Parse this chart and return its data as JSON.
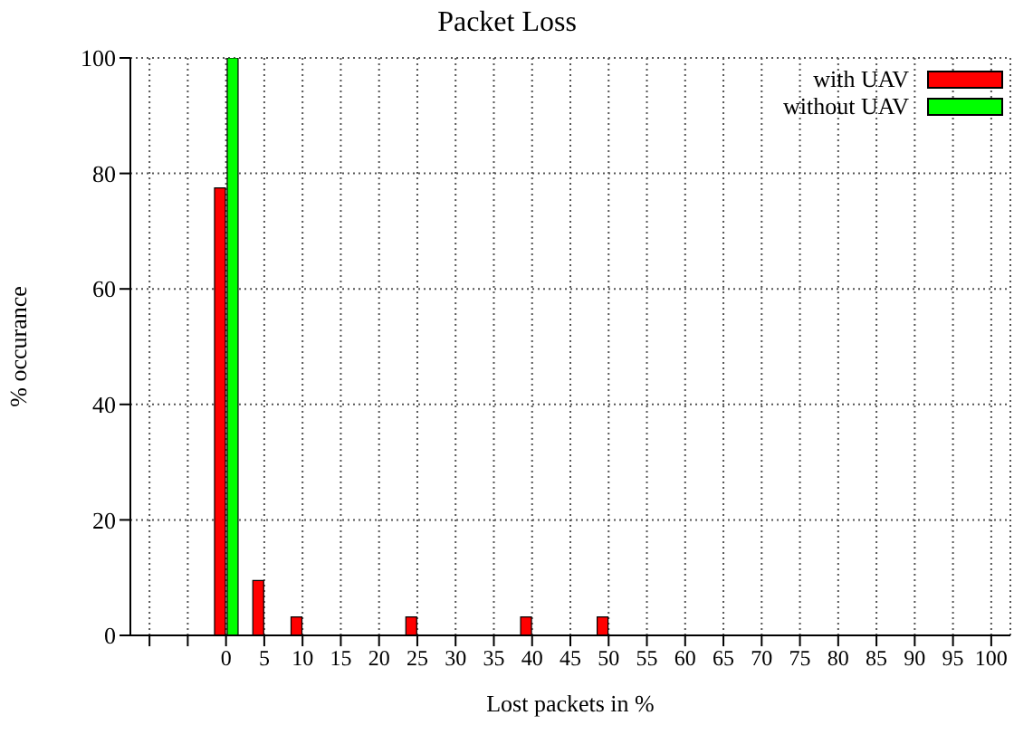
{
  "chart_data": {
    "type": "bar",
    "title": "Packet Loss",
    "xlabel": "Lost packets in %",
    "ylabel": "% occurance",
    "categories": [
      null,
      null,
      "0",
      "5",
      "10",
      "15",
      "20",
      "25",
      "30",
      "35",
      "40",
      "45",
      "50",
      "55",
      "60",
      "65",
      "70",
      "75",
      "80",
      "85",
      "90",
      "95",
      "100"
    ],
    "series": [
      {
        "name": "with UAV",
        "color": "#ff0000",
        "values": [
          null,
          null,
          77.5,
          9.5,
          3.2,
          0,
          0,
          3.2,
          0,
          0,
          3.2,
          0,
          3.2,
          0,
          0,
          0,
          0,
          0,
          0,
          0,
          0,
          0,
          0
        ]
      },
      {
        "name": "without UAV",
        "color": "#00ff00",
        "values": [
          null,
          null,
          100,
          0,
          0,
          0,
          0,
          0,
          0,
          0,
          0,
          0,
          0,
          0,
          0,
          0,
          0,
          0,
          0,
          0,
          0,
          0,
          0
        ]
      }
    ],
    "ylim": [
      0,
      100
    ],
    "yticks": [
      0,
      20,
      40,
      60,
      80,
      100
    ],
    "grid": true,
    "legend": "top right"
  }
}
